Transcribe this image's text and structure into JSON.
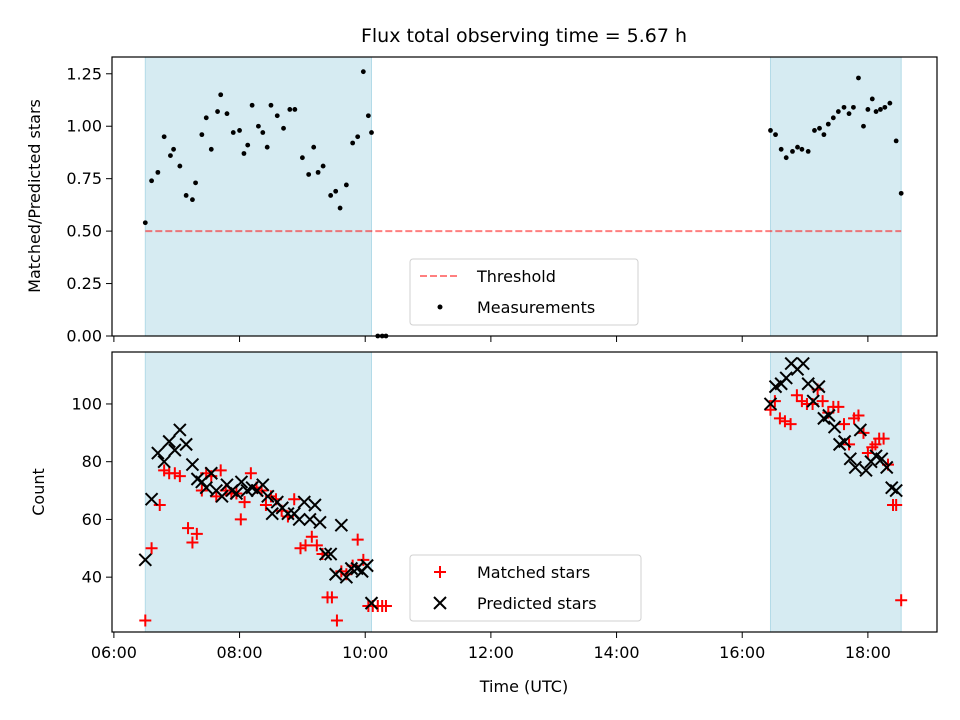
{
  "title": "Flux total observing time = 5.67 h",
  "colors": {
    "shade": "#add8e6",
    "threshold": "#ff0000",
    "measurement": "#000000",
    "matched": "#ff0000",
    "predicted": "#000000"
  },
  "chart_data": [
    {
      "type": "scatter",
      "ylabel": "Matched/Predicted stars",
      "xlim": [
        5.97,
        19.1
      ],
      "ylim": [
        0,
        1.33
      ],
      "yticks": [
        0,
        0.25,
        0.5,
        0.75,
        1.0,
        1.25
      ],
      "ytick_labels": [
        "0.00",
        "0.25",
        "0.50",
        "0.75",
        "1.00",
        "1.25"
      ],
      "x_ticks_labeled": false,
      "shaded_spans": [
        [
          6.5,
          10.1
        ],
        [
          16.45,
          18.53
        ]
      ],
      "threshold": {
        "value": 0.5,
        "x_range": [
          6.5,
          18.53
        ],
        "style": "dashed"
      },
      "legend": {
        "placement": "lower-center",
        "entries": [
          "Threshold",
          "Measurements"
        ]
      },
      "series": [
        {
          "name": "Measurements",
          "x": [
            6.5,
            6.6,
            6.7,
            6.8,
            6.9,
            6.95,
            7.05,
            7.15,
            7.25,
            7.3,
            7.4,
            7.47,
            7.55,
            7.65,
            7.7,
            7.8,
            7.9,
            8.0,
            8.07,
            8.13,
            8.2,
            8.3,
            8.37,
            8.44,
            8.5,
            8.6,
            8.7,
            8.8,
            8.88,
            9.0,
            9.1,
            9.18,
            9.25,
            9.33,
            9.45,
            9.53,
            9.6,
            9.7,
            9.8,
            9.88,
            9.97,
            10.05,
            10.1,
            10.2,
            10.27,
            10.33,
            16.45,
            16.53,
            16.62,
            16.7,
            16.8,
            16.88,
            16.95,
            17.05,
            17.15,
            17.23,
            17.3,
            17.37,
            17.45,
            17.53,
            17.62,
            17.7,
            17.77,
            17.85,
            17.93,
            18.0,
            18.07,
            18.13,
            18.2,
            18.27,
            18.35,
            18.45,
            18.53
          ],
          "y": [
            0.54,
            0.74,
            0.78,
            0.95,
            0.86,
            0.89,
            0.81,
            0.67,
            0.65,
            0.73,
            0.96,
            1.04,
            0.89,
            1.07,
            1.15,
            1.06,
            0.97,
            0.98,
            0.87,
            0.91,
            1.1,
            1.0,
            0.97,
            0.9,
            1.1,
            1.05,
            0.99,
            1.08,
            1.08,
            0.85,
            0.77,
            0.9,
            0.78,
            0.81,
            0.67,
            0.69,
            0.61,
            0.72,
            0.92,
            0.95,
            1.26,
            1.05,
            0.97,
            0.0,
            0.0,
            0.0,
            0.98,
            0.96,
            0.89,
            0.85,
            0.88,
            0.9,
            0.89,
            0.88,
            0.98,
            0.99,
            0.96,
            1.01,
            1.04,
            1.07,
            1.09,
            1.06,
            1.09,
            1.23,
            1.0,
            1.08,
            1.13,
            1.07,
            1.08,
            1.09,
            1.11,
            0.93,
            0.68
          ]
        }
      ]
    },
    {
      "type": "scatter",
      "xlabel": "Time (UTC)",
      "ylabel": "Count",
      "xlim": [
        5.97,
        19.1
      ],
      "ylim": [
        21,
        118
      ],
      "yticks": [
        40,
        60,
        80,
        100
      ],
      "ytick_labels": [
        "40",
        "60",
        "80",
        "100"
      ],
      "xticks": [
        6,
        8,
        10,
        12,
        14,
        16,
        18
      ],
      "xtick_labels": [
        "06:00",
        "08:00",
        "10:00",
        "12:00",
        "14:00",
        "16:00",
        "18:00"
      ],
      "shaded_spans": [
        [
          6.5,
          10.1
        ],
        [
          16.45,
          18.53
        ]
      ],
      "legend": {
        "placement": "lower-center",
        "entries": [
          "Matched stars",
          "Predicted stars"
        ]
      },
      "series": [
        {
          "name": "Matched stars",
          "x": [
            6.5,
            6.6,
            6.73,
            6.8,
            6.88,
            6.97,
            7.05,
            7.18,
            7.25,
            7.32,
            7.4,
            7.47,
            7.55,
            7.63,
            7.7,
            7.78,
            7.87,
            7.95,
            8.02,
            8.08,
            8.18,
            8.27,
            8.35,
            8.42,
            8.5,
            8.58,
            8.67,
            8.77,
            8.87,
            8.97,
            9.05,
            9.15,
            9.23,
            9.32,
            9.4,
            9.47,
            9.55,
            9.62,
            9.7,
            9.8,
            9.88,
            9.97,
            10.05,
            10.12,
            10.2,
            10.27,
            10.33,
            16.45,
            16.52,
            16.6,
            16.68,
            16.77,
            16.87,
            16.95,
            17.03,
            17.12,
            17.2,
            17.28,
            17.37,
            17.45,
            17.53,
            17.62,
            17.7,
            17.78,
            17.85,
            17.93,
            18.0,
            18.07,
            18.12,
            18.18,
            18.25,
            18.32,
            18.4,
            18.45,
            18.53
          ],
          "y": [
            25,
            50,
            65,
            77,
            76,
            76,
            75,
            57,
            52,
            55,
            70,
            76,
            75,
            68,
            77,
            70,
            69,
            69,
            60,
            66,
            76,
            71,
            70,
            65,
            68,
            67,
            63,
            61,
            67,
            50,
            51,
            54,
            51,
            48,
            33,
            33,
            25,
            42,
            41,
            44,
            53,
            46,
            30,
            30,
            30,
            30,
            30,
            98,
            101,
            95,
            94,
            93,
            103,
            101,
            100,
            100,
            105,
            101,
            97,
            99,
            99,
            93,
            86,
            95,
            96,
            90,
            83,
            85,
            86,
            88,
            88,
            79,
            65,
            65,
            32
          ]
        },
        {
          "name": "Predicted stars",
          "x": [
            6.5,
            6.6,
            6.7,
            6.8,
            6.88,
            6.97,
            7.05,
            7.15,
            7.25,
            7.33,
            7.4,
            7.47,
            7.55,
            7.63,
            7.72,
            7.8,
            7.88,
            7.95,
            8.03,
            8.12,
            8.2,
            8.28,
            8.37,
            8.45,
            8.52,
            8.6,
            8.68,
            8.77,
            8.87,
            8.95,
            9.03,
            9.12,
            9.2,
            9.28,
            9.37,
            9.45,
            9.53,
            9.62,
            9.7,
            9.78,
            9.87,
            9.95,
            10.03,
            10.1,
            16.45,
            16.53,
            16.62,
            16.7,
            16.78,
            16.88,
            16.97,
            17.05,
            17.13,
            17.22,
            17.3,
            17.38,
            17.47,
            17.55,
            17.63,
            17.72,
            17.8,
            17.88,
            17.97,
            18.05,
            18.13,
            18.22,
            18.3,
            18.38,
            18.45
          ],
          "y": [
            46,
            67,
            83,
            80,
            87,
            84,
            91,
            86,
            79,
            74,
            73,
            71,
            76,
            70,
            68,
            72,
            70,
            69,
            73,
            70,
            71,
            70,
            72,
            68,
            62,
            66,
            64,
            62,
            62,
            60,
            66,
            60,
            65,
            59,
            48,
            48,
            41,
            58,
            40,
            43,
            43,
            42,
            44,
            31,
            100,
            106,
            107,
            109,
            114,
            112,
            114,
            107,
            101,
            106,
            95,
            96,
            92,
            86,
            87,
            81,
            78,
            91,
            77,
            80,
            82,
            81,
            78,
            71,
            70
          ]
        }
      ]
    }
  ]
}
